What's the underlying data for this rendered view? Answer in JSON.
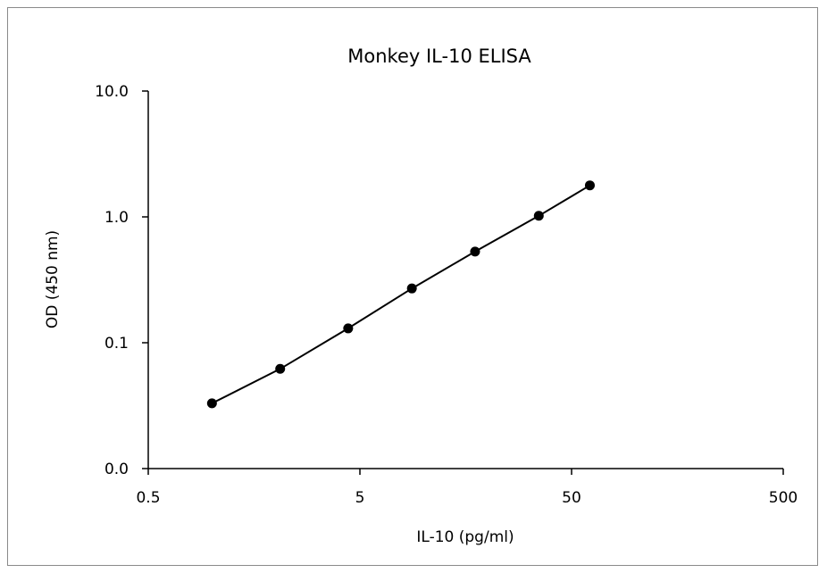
{
  "chart_data": {
    "type": "line",
    "title": "Monkey IL-10 ELISA",
    "xlabel": "IL-10 (pg/ml)",
    "ylabel": "OD (450 nm)",
    "x_scale": "log",
    "y_scale": "log",
    "xlim": [
      0.5,
      500
    ],
    "x_ticks": [
      0.5,
      5,
      50,
      500
    ],
    "x_tick_labels": [
      "0.5",
      "5",
      "50",
      "500"
    ],
    "ylim": [
      0.01,
      10
    ],
    "y_ticks": [
      0.01,
      0.1,
      1,
      10
    ],
    "y_tick_labels": [
      "0.0",
      "0.1",
      "1.0",
      "10.0"
    ],
    "grid": false,
    "legend": "none",
    "series": [
      {
        "x": [
          1.0,
          2.1,
          4.4,
          8.8,
          17.5,
          35,
          61
        ],
        "y": [
          0.033,
          0.062,
          0.13,
          0.27,
          0.53,
          1.02,
          1.78
        ],
        "color": "#000000",
        "marker": "circle"
      }
    ]
  }
}
